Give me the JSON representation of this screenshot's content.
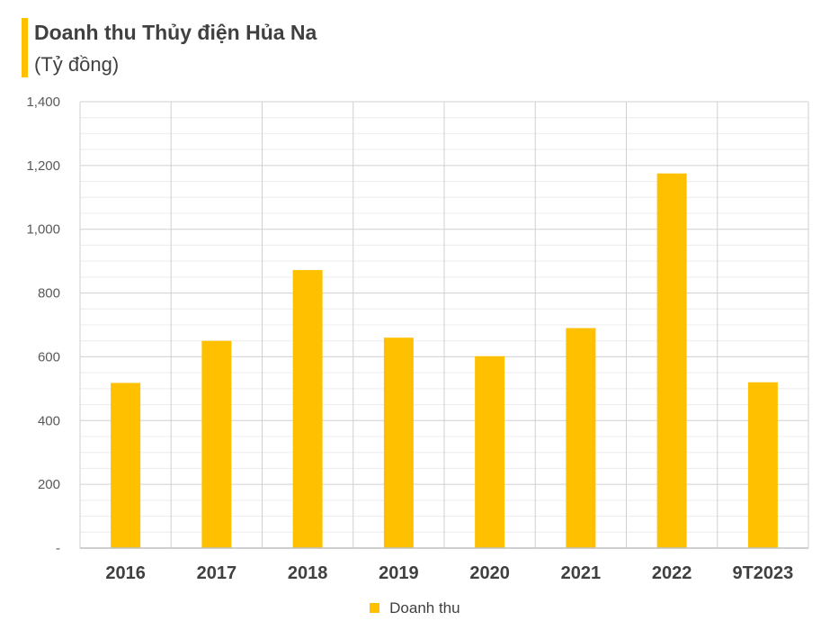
{
  "chart_data": {
    "type": "bar",
    "title": "Doanh thu Thủy điện Hủa Na",
    "subtitle": "(Tỷ đồng)",
    "categories": [
      "2016",
      "2017",
      "2018",
      "2019",
      "2020",
      "2021",
      "2022",
      "9T2023"
    ],
    "series": [
      {
        "name": "Doanh thu",
        "values": [
          518,
          650,
          872,
          660,
          602,
          690,
          1175,
          520
        ],
        "color": "#FFC000"
      }
    ],
    "ylim": [
      0,
      1400
    ],
    "yticks": [
      0,
      200,
      400,
      600,
      800,
      1000,
      1200,
      1400
    ],
    "ytick_labels": [
      "-",
      "200",
      "400",
      "600",
      "800",
      "1,000",
      "1,200",
      "1,400"
    ],
    "xlabel": "",
    "ylabel": "",
    "grid": true,
    "legend_position": "bottom"
  }
}
